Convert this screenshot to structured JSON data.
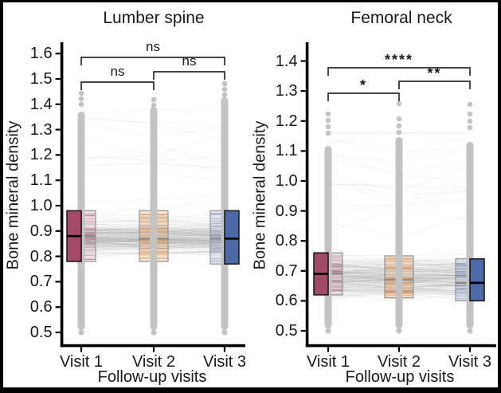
{
  "figure": {
    "background": "#ffffff",
    "frame_color": "#000000",
    "style": {
      "points_color": "#c3c3c3",
      "connector_color": "#e4e4e4",
      "axis_color": "#000000",
      "text_color": "#1a1a1a",
      "solid_box_border": "#151515",
      "faded_box_border": "#8f8f8f"
    }
  },
  "chart_data": [
    {
      "type": "boxplot-paired-points",
      "title": "Lumber spine",
      "xlabel": "Follow-up visits",
      "ylabel": "Bone mineral density",
      "categories": [
        "Visit 1",
        "Visit 2",
        "Visit 3"
      ],
      "ylim": [
        0.5,
        1.6
      ],
      "yticks": [
        "1.6",
        "1.5",
        "1.4",
        "1.3",
        "1.2",
        "1.1",
        "1.0",
        "0.9",
        "0.8",
        "0.7",
        "0.6",
        "0.5"
      ],
      "grid": false,
      "legend": "none",
      "boxes": [
        {
          "category": "Visit 1",
          "q1": 0.78,
          "median": 0.88,
          "q3": 0.98,
          "points_min": 0.5,
          "points_max": 1.46,
          "color": "#a34a68",
          "solid_side": "left"
        },
        {
          "category": "Visit 2",
          "q1": 0.78,
          "median": 0.87,
          "q3": 0.98,
          "points_min": 0.5,
          "points_max": 1.44,
          "color": "#de9b63",
          "solid_side": "none"
        },
        {
          "category": "Visit 3",
          "q1": 0.77,
          "median": 0.87,
          "q3": 0.98,
          "points_min": 0.5,
          "points_max": 1.49,
          "color": "#4d69a6",
          "solid_side": "right"
        }
      ],
      "significance": [
        {
          "pair": [
            "Visit 1",
            "Visit 3"
          ],
          "label": "ns"
        },
        {
          "pair": [
            "Visit 2",
            "Visit 3"
          ],
          "label": "ns"
        },
        {
          "pair": [
            "Visit 1",
            "Visit 2"
          ],
          "label": "ns"
        }
      ]
    },
    {
      "type": "boxplot-paired-points",
      "title": "Femoral neck",
      "xlabel": "Follow-up visits",
      "ylabel": "Bone mineral density",
      "categories": [
        "Visit 1",
        "Visit 2",
        "Visit 3"
      ],
      "ylim": [
        0.5,
        1.4
      ],
      "yticks": [
        "1.4",
        "1.3",
        "1.2",
        "1.1",
        "1.0",
        "0.9",
        "0.8",
        "0.7",
        "0.6",
        "0.5"
      ],
      "grid": false,
      "legend": "none",
      "boxes": [
        {
          "category": "Visit 1",
          "q1": 0.62,
          "median": 0.69,
          "q3": 0.76,
          "points_min": 0.5,
          "points_max": 1.22,
          "color": "#a34a68",
          "solid_side": "left"
        },
        {
          "category": "Visit 2",
          "q1": 0.61,
          "median": 0.67,
          "q3": 0.75,
          "points_min": 0.5,
          "points_max": 1.25,
          "color": "#de9b63",
          "solid_side": "none"
        },
        {
          "category": "Visit 3",
          "q1": 0.6,
          "median": 0.66,
          "q3": 0.74,
          "points_min": 0.5,
          "points_max": 1.25,
          "color": "#4d69a6",
          "solid_side": "right"
        }
      ],
      "significance": [
        {
          "pair": [
            "Visit 1",
            "Visit 3"
          ],
          "label": "****"
        },
        {
          "pair": [
            "Visit 2",
            "Visit 3"
          ],
          "label": "**"
        },
        {
          "pair": [
            "Visit 1",
            "Visit 2"
          ],
          "label": "*"
        }
      ]
    }
  ]
}
